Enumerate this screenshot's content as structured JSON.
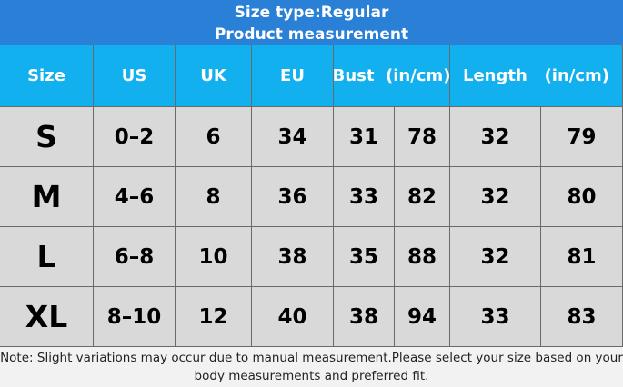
{
  "header": {
    "title": [
      "Size type:Regular",
      "Product measurement"
    ]
  },
  "table": {
    "columns": [
      "Size",
      "US",
      "UK",
      "EU",
      "Bust  (in/cm)",
      "Length   (in/cm)"
    ],
    "rows": [
      [
        "S",
        "0–2",
        6,
        34,
        31,
        78,
        32,
        79
      ],
      [
        "M",
        "4–6",
        8,
        36,
        33,
        82,
        32,
        80
      ],
      [
        "L",
        "6–8",
        10,
        38,
        35,
        88,
        32,
        81
      ],
      [
        "XL",
        "8–10",
        12,
        40,
        38,
        94,
        33,
        83
      ]
    ]
  },
  "note": "Note: Slight variations may occur due to manual measurement.Please select your size based on your body measurements and preferred fit."
}
